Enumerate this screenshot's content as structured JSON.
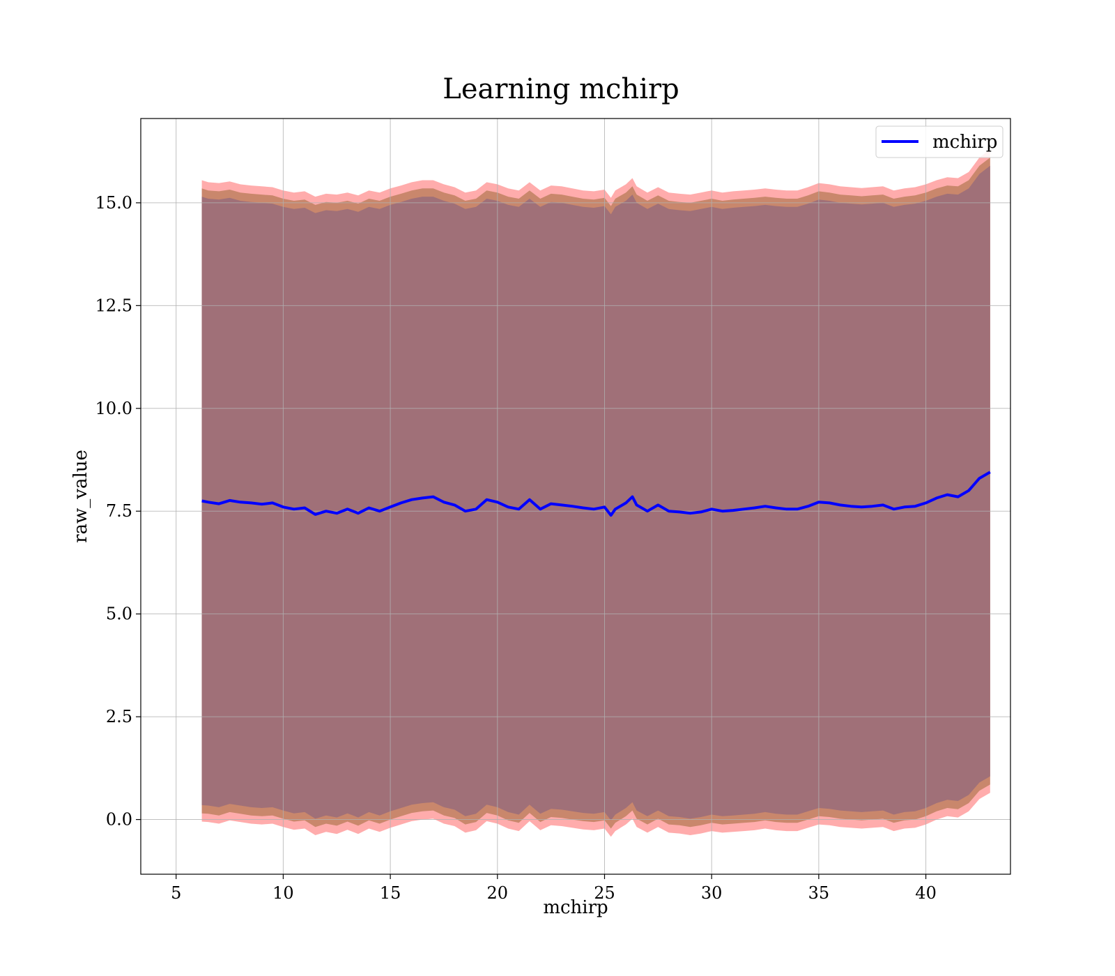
{
  "chart_data": {
    "type": "line",
    "title": "Learning mchirp",
    "xlabel": "mchirp",
    "ylabel": "raw_value",
    "xlim": [
      3.35,
      43.95
    ],
    "ylim": [
      -1.33,
      17.05
    ],
    "xticks": [
      5,
      10,
      15,
      20,
      25,
      30,
      35,
      40
    ],
    "yticks": [
      0.0,
      2.5,
      5.0,
      7.5,
      10.0,
      12.5,
      15.0
    ],
    "xtick_labels": [
      "5",
      "10",
      "15",
      "20",
      "25",
      "30",
      "35",
      "40"
    ],
    "ytick_labels": [
      "0.0",
      "2.5",
      "5.0",
      "7.5",
      "10.0",
      "12.5",
      "15.0"
    ],
    "grid": true,
    "legend": {
      "position": "top-right",
      "entries": [
        "mchirp"
      ]
    },
    "colors": {
      "line": "#0000ff",
      "band_outer": "#ff8080",
      "band_middle": "#c08060",
      "band_inner": "#a07078",
      "grid": "#b0b0b0"
    },
    "series": [
      {
        "name": "mchirp",
        "x": [
          6.2,
          6.5,
          7.0,
          7.5,
          8.0,
          8.5,
          9.0,
          9.5,
          10.0,
          10.5,
          11.0,
          11.5,
          12.0,
          12.5,
          13.0,
          13.5,
          14.0,
          14.5,
          15.0,
          15.5,
          16.0,
          16.5,
          17.0,
          17.5,
          18.0,
          18.5,
          19.0,
          19.5,
          20.0,
          20.5,
          21.0,
          21.5,
          22.0,
          22.5,
          23.0,
          23.5,
          24.0,
          24.5,
          25.0,
          25.3,
          25.5,
          26.0,
          26.3,
          26.5,
          27.0,
          27.5,
          28.0,
          28.5,
          29.0,
          29.5,
          30.0,
          30.5,
          31.0,
          31.5,
          32.0,
          32.5,
          33.0,
          33.5,
          34.0,
          34.5,
          35.0,
          35.5,
          36.0,
          36.5,
          37.0,
          37.5,
          38.0,
          38.5,
          39.0,
          39.5,
          40.0,
          40.5,
          41.0,
          41.5,
          42.0,
          42.5,
          43.0
        ],
        "y": [
          7.75,
          7.72,
          7.68,
          7.76,
          7.72,
          7.7,
          7.67,
          7.7,
          7.6,
          7.55,
          7.58,
          7.42,
          7.5,
          7.45,
          7.55,
          7.45,
          7.58,
          7.5,
          7.6,
          7.7,
          7.78,
          7.82,
          7.85,
          7.72,
          7.65,
          7.5,
          7.55,
          7.78,
          7.72,
          7.6,
          7.55,
          7.78,
          7.55,
          7.68,
          7.65,
          7.62,
          7.58,
          7.55,
          7.6,
          7.4,
          7.55,
          7.7,
          7.85,
          7.65,
          7.5,
          7.65,
          7.5,
          7.48,
          7.45,
          7.48,
          7.55,
          7.5,
          7.52,
          7.55,
          7.58,
          7.62,
          7.58,
          7.55,
          7.55,
          7.62,
          7.72,
          7.7,
          7.65,
          7.62,
          7.6,
          7.62,
          7.65,
          7.55,
          7.6,
          7.62,
          7.7,
          7.82,
          7.9,
          7.85,
          8.0,
          8.3,
          8.45
        ],
        "band_outer_upper": [
          15.55,
          15.5,
          15.48,
          15.52,
          15.45,
          15.42,
          15.4,
          15.38,
          15.3,
          15.25,
          15.28,
          15.15,
          15.22,
          15.2,
          15.25,
          15.18,
          15.3,
          15.25,
          15.35,
          15.42,
          15.5,
          15.55,
          15.55,
          15.45,
          15.38,
          15.25,
          15.3,
          15.5,
          15.45,
          15.35,
          15.3,
          15.5,
          15.3,
          15.42,
          15.4,
          15.35,
          15.3,
          15.28,
          15.32,
          15.12,
          15.3,
          15.45,
          15.6,
          15.4,
          15.25,
          15.38,
          15.25,
          15.22,
          15.2,
          15.25,
          15.3,
          15.25,
          15.28,
          15.3,
          15.32,
          15.35,
          15.32,
          15.3,
          15.3,
          15.38,
          15.48,
          15.45,
          15.4,
          15.38,
          15.36,
          15.38,
          15.4,
          15.3,
          15.35,
          15.38,
          15.45,
          15.55,
          15.62,
          15.6,
          15.75,
          16.1,
          16.3
        ],
        "band_outer_lower": [
          -0.05,
          -0.06,
          -0.1,
          -0.02,
          -0.06,
          -0.1,
          -0.12,
          -0.1,
          -0.18,
          -0.25,
          -0.22,
          -0.38,
          -0.3,
          -0.35,
          -0.25,
          -0.35,
          -0.22,
          -0.3,
          -0.2,
          -0.12,
          -0.04,
          0.0,
          0.02,
          -0.1,
          -0.16,
          -0.32,
          -0.26,
          -0.04,
          -0.1,
          -0.22,
          -0.28,
          -0.04,
          -0.26,
          -0.14,
          -0.16,
          -0.2,
          -0.24,
          -0.26,
          -0.22,
          -0.42,
          -0.28,
          -0.12,
          0.02,
          -0.18,
          -0.32,
          -0.18,
          -0.32,
          -0.34,
          -0.38,
          -0.34,
          -0.28,
          -0.32,
          -0.3,
          -0.28,
          -0.26,
          -0.22,
          -0.26,
          -0.28,
          -0.28,
          -0.2,
          -0.12,
          -0.14,
          -0.18,
          -0.2,
          -0.22,
          -0.2,
          -0.18,
          -0.28,
          -0.22,
          -0.2,
          -0.12,
          0.0,
          0.08,
          0.05,
          0.2,
          0.5,
          0.65
        ],
        "band_middle_upper": [
          15.35,
          15.3,
          15.28,
          15.32,
          15.25,
          15.22,
          15.2,
          15.18,
          15.1,
          15.05,
          15.08,
          14.95,
          15.02,
          15.0,
          15.05,
          14.98,
          15.1,
          15.05,
          15.15,
          15.22,
          15.3,
          15.35,
          15.35,
          15.25,
          15.18,
          15.05,
          15.1,
          15.3,
          15.25,
          15.15,
          15.1,
          15.3,
          15.1,
          15.22,
          15.2,
          15.15,
          15.1,
          15.08,
          15.12,
          14.92,
          15.1,
          15.25,
          15.4,
          15.2,
          15.05,
          15.18,
          15.05,
          15.02,
          15.0,
          15.05,
          15.1,
          15.05,
          15.08,
          15.1,
          15.12,
          15.15,
          15.12,
          15.1,
          15.1,
          15.18,
          15.28,
          15.25,
          15.2,
          15.18,
          15.16,
          15.18,
          15.2,
          15.1,
          15.15,
          15.18,
          15.25,
          15.35,
          15.42,
          15.4,
          15.55,
          15.9,
          16.1
        ],
        "band_middle_lower": [
          0.15,
          0.14,
          0.1,
          0.18,
          0.14,
          0.1,
          0.08,
          0.1,
          0.02,
          -0.05,
          -0.02,
          -0.18,
          -0.1,
          -0.15,
          -0.05,
          -0.15,
          -0.02,
          -0.1,
          0.0,
          0.08,
          0.16,
          0.2,
          0.22,
          0.1,
          0.04,
          -0.12,
          -0.06,
          0.16,
          0.1,
          -0.02,
          -0.08,
          0.16,
          -0.06,
          0.06,
          0.04,
          0.0,
          -0.04,
          -0.06,
          -0.02,
          -0.22,
          -0.08,
          0.08,
          0.22,
          0.02,
          -0.12,
          0.02,
          -0.12,
          -0.14,
          -0.18,
          -0.14,
          -0.08,
          -0.12,
          -0.1,
          -0.08,
          -0.06,
          -0.02,
          -0.06,
          -0.08,
          -0.08,
          0.0,
          0.08,
          0.06,
          0.02,
          0.0,
          -0.02,
          0.0,
          0.02,
          -0.08,
          -0.02,
          0.0,
          0.08,
          0.2,
          0.28,
          0.25,
          0.4,
          0.7,
          0.85
        ],
        "band_inner_upper": [
          15.15,
          15.1,
          15.08,
          15.12,
          15.05,
          15.02,
          15.0,
          14.98,
          14.9,
          14.85,
          14.88,
          14.75,
          14.82,
          14.8,
          14.85,
          14.78,
          14.9,
          14.85,
          14.95,
          15.02,
          15.1,
          15.15,
          15.15,
          15.05,
          14.98,
          14.85,
          14.9,
          15.1,
          15.05,
          14.95,
          14.9,
          15.1,
          14.9,
          15.02,
          15.0,
          14.95,
          14.9,
          14.88,
          14.92,
          14.72,
          14.9,
          15.05,
          15.2,
          15.0,
          14.85,
          14.98,
          14.85,
          14.82,
          14.8,
          14.85,
          14.9,
          14.85,
          14.88,
          14.9,
          14.92,
          14.95,
          14.92,
          14.9,
          14.9,
          14.98,
          15.08,
          15.05,
          15.0,
          14.98,
          14.96,
          14.98,
          15.0,
          14.9,
          14.95,
          14.98,
          15.05,
          15.15,
          15.22,
          15.2,
          15.35,
          15.7,
          15.9
        ],
        "band_inner_lower": [
          0.35,
          0.34,
          0.3,
          0.38,
          0.34,
          0.3,
          0.28,
          0.3,
          0.22,
          0.15,
          0.18,
          0.02,
          0.1,
          0.05,
          0.15,
          0.05,
          0.18,
          0.1,
          0.2,
          0.28,
          0.36,
          0.4,
          0.42,
          0.3,
          0.24,
          0.08,
          0.14,
          0.36,
          0.3,
          0.18,
          0.12,
          0.36,
          0.14,
          0.26,
          0.24,
          0.2,
          0.16,
          0.14,
          0.18,
          -0.02,
          0.12,
          0.28,
          0.42,
          0.22,
          0.08,
          0.22,
          0.08,
          0.06,
          0.02,
          0.06,
          0.12,
          0.08,
          0.1,
          0.12,
          0.14,
          0.18,
          0.14,
          0.12,
          0.12,
          0.2,
          0.28,
          0.26,
          0.22,
          0.2,
          0.18,
          0.2,
          0.22,
          0.12,
          0.18,
          0.2,
          0.28,
          0.4,
          0.48,
          0.45,
          0.6,
          0.9,
          1.05
        ]
      }
    ]
  }
}
